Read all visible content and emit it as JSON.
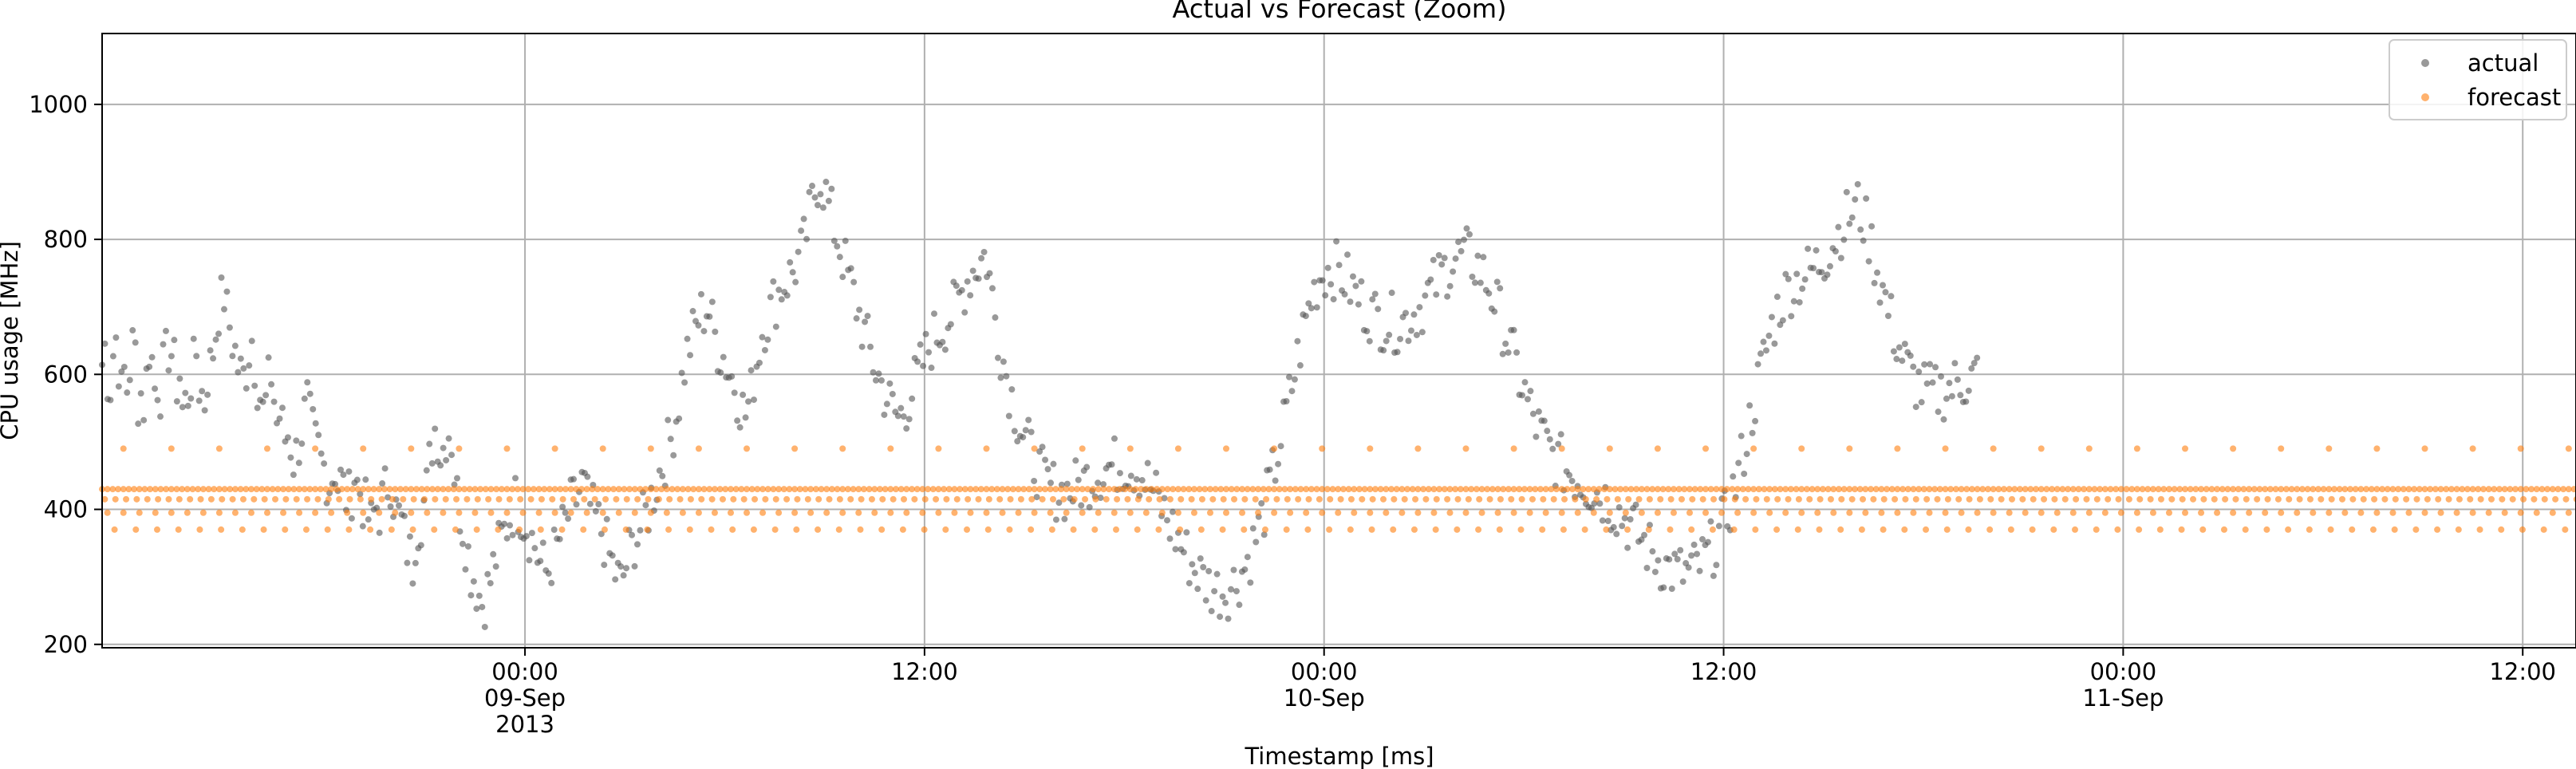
{
  "chart_data": {
    "type": "scatter",
    "title": "Actual vs Forecast (Zoom)",
    "xlabel": "Timestamp [ms]",
    "ylabel": "CPU usage [MHz]",
    "x_unit": "hours relative to 2013-09-09 00:00",
    "xlim": [
      -12.7,
      61.6
    ],
    "ylim": [
      195,
      1105
    ],
    "grid": true,
    "legend_position": "top-right",
    "x_ticks": [
      {
        "x": 0,
        "lines": [
          "00:00",
          "09-Sep",
          "2013"
        ]
      },
      {
        "x": 12,
        "lines": [
          "12:00"
        ]
      },
      {
        "x": 24,
        "lines": [
          "00:00",
          "10-Sep"
        ]
      },
      {
        "x": 36,
        "lines": [
          "12:00"
        ]
      },
      {
        "x": 48,
        "lines": [
          "00:00",
          "11-Sep"
        ]
      },
      {
        "x": 60,
        "lines": [
          "12:00"
        ]
      }
    ],
    "y_ticks": [
      200,
      400,
      600,
      800,
      1000
    ],
    "series": [
      {
        "name": "actual",
        "color": "#555555",
        "marker_size": 4,
        "opacity": 0.6,
        "x_start": -12.7,
        "x_step": 0.0833,
        "values": [
          615,
          640,
          598,
          585,
          632,
          654,
          620,
          570,
          603,
          581,
          611,
          640,
          633,
          565,
          572,
          556,
          593,
          642,
          620,
          580,
          591,
          578,
          605,
          622,
          640,
          632,
          610,
          588,
          601,
          547,
          557,
          573,
          594,
          609,
          632,
          585,
          571,
          562,
          601,
          611,
          637,
          665,
          698,
          705,
          720,
          688,
          672,
          651,
          633,
          612,
          600,
          595,
          612,
          638,
          654,
          620,
          591,
          570,
          543,
          556,
          584,
          601,
          565,
          528,
          540,
          520,
          505,
          512,
          498,
          475,
          480,
          502,
          518,
          540,
          556,
          529,
          510,
          495,
          488,
          470,
          463,
          452,
          440,
          451,
          463,
          437,
          442,
          430,
          420,
          415,
          431,
          452,
          436,
          428,
          412,
          400,
          389,
          376,
          392,
          405,
          399,
          412,
          425,
          439,
          447,
          420,
          396,
          388,
          378,
          357,
          345,
          330,
          320,
          362,
          380,
          390,
          410,
          428,
          466,
          500,
          520,
          511,
          485,
          492,
          512,
          518,
          505,
          455,
          420,
          400,
          379,
          356,
          334,
          310,
          302,
          288,
          274,
          263,
          270,
          281,
          295,
          312,
          330,
          341,
          355,
          366,
          378,
          389,
          400,
          412,
          404,
          398,
          385,
          378,
          367,
          356,
          348,
          332,
          320,
          314,
          307,
          312,
          325,
          334,
          342,
          356,
          367,
          379,
          390,
          402,
          410,
          415,
          426,
          437,
          428,
          411,
          404,
          392,
          385,
          378,
          369,
          356,
          343,
          330,
          318,
          306,
          298,
          290,
          302,
          318,
          335,
          342,
          356,
          360,
          372,
          381,
          392,
          400,
          416,
          428,
          441,
          455,
          466,
          478,
          491,
          503,
          522,
          540,
          563,
          588,
          612,
          631,
          646,
          657,
          670,
          682,
          689,
          693,
          700,
          693,
          672,
          657,
          642,
          633,
          627,
          618,
          604,
          596,
          588,
          574,
          561,
          548,
          540,
          555,
          570,
          598,
          620,
          642,
          665,
          678,
          685,
          694,
          706,
          713,
          722,
          731,
          736,
          741,
          745,
          752,
          761,
          770,
          778,
          790,
          811,
          830,
          852,
          870,
          888,
          893,
          880,
          865,
          849,
          833,
          818,
          803,
          790,
          775,
          760,
          744,
          731,
          718,
          703,
          688,
          674,
          659,
          645,
          631,
          618,
          606,
          596,
          585,
          574,
          566,
          557,
          549,
          542,
          536,
          540,
          548,
          557,
          566,
          575,
          586,
          596,
          606,
          617,
          627,
          638,
          647,
          655,
          661,
          666,
          671,
          677,
          682,
          688,
          694,
          703,
          711,
          721,
          732,
          741,
          748,
          755,
          760,
          765,
          770,
          775,
          770,
          742,
          713,
          685,
          661,
          640,
          620,
          601,
          583,
          567,
          552,
          538,
          526,
          513,
          502,
          491,
          481,
          472,
          463,
          455,
          448,
          442,
          437,
          433,
          430,
          428,
          427,
          426,
          425,
          426,
          428,
          430,
          432,
          435,
          438,
          441,
          444,
          447,
          450,
          453,
          455,
          457,
          459,
          461,
          463,
          464,
          465,
          466,
          467,
          468,
          467,
          466,
          465,
          463,
          460,
          456,
          451,
          446,
          440,
          433,
          426,
          419,
          411,
          403,
          395,
          387,
          379,
          371,
          363,
          355,
          347,
          340,
          333,
          326,
          319,
          313,
          307,
          302,
          297,
          292,
          288,
          285,
          283,
          281,
          280,
          280,
          281,
          283,
          286,
          290,
          295,
          301,
          308,
          316,
          325,
          335,
          346,
          358,
          371,
          385,
          400,
          416,
          432,
          449,
          467,
          485,
          504,
          523,
          543,
          563,
          583,
          603,
          623,
          643,
          662,
          680,
          697,
          712,
          725,
          736,
          744,
          750,
          754,
          756,
          757,
          756,
          754,
          751,
          747,
          742,
          737,
          731,
          725,
          719,
          713,
          707,
          702,
          697,
          693,
          689,
          686,
          683,
          681,
          679,
          678,
          677,
          676,
          676,
          676,
          677,
          679,
          681,
          684,
          687,
          691,
          695,
          700,
          705,
          711,
          717,
          723,
          729,
          736,
          742,
          748,
          754,
          759,
          764,
          768,
          771,
          773,
          775,
          775,
          774,
          772,
          769,
          765,
          760,
          754,
          747,
          739,
          730,
          720,
          710,
          699,
          687,
          675,
          662,
          649,
          636,
          622,
          609,
          596,
          583,
          570,
          558,
          547,
          536,
          526,
          517,
          509,
          501,
          494,
          487,
          481,
          476,
          471,
          467,
          463,
          459,
          456,
          453,
          450,
          447,
          444,
          441,
          438,
          435,
          432,
          429,
          426,
          423,
          419,
          416,
          412,
          408,
          404,
          400,
          395,
          391,
          386,
          381,
          376,
          371,
          366,
          361,
          355,
          350,
          345,
          340,
          335,
          330,
          326,
          322,
          318,
          315,
          312,
          310,
          308,
          307,
          306,
          306,
          306,
          307,
          309,
          311,
          314,
          318,
          322,
          327,
          333,
          339,
          346,
          354,
          363,
          373,
          384,
          396,
          409,
          423,
          438,
          454,
          471,
          489,
          508,
          527,
          546,
          565,
          584,
          603,
          621,
          638,
          654,
          669,
          682,
          694,
          704,
          713,
          720,
          726,
          731,
          735,
          738,
          741,
          744,
          747,
          750,
          753,
          756,
          760,
          765,
          770,
          776,
          782,
          789,
          796,
          803,
          810,
          817,
          824,
          830,
          836,
          841,
          845,
          848,
          840,
          830,
          818,
          805,
          790,
          774,
          758,
          741,
          725,
          709,
          693,
          678,
          664,
          651,
          639,
          628,
          618,
          609,
          601,
          594,
          588,
          583,
          579,
          576,
          574,
          573,
          572,
          572,
          573,
          574,
          576,
          578,
          580,
          582,
          584,
          586,
          588,
          590,
          592,
          594,
          596,
          598,
          600
        ],
        "values_note": ""
      },
      {
        "name": "forecast",
        "color": "#ff7f0e",
        "marker_size": 4,
        "opacity": 0.6,
        "levels": [
          490,
          430,
          415,
          395,
          370
        ]
      }
    ]
  }
}
